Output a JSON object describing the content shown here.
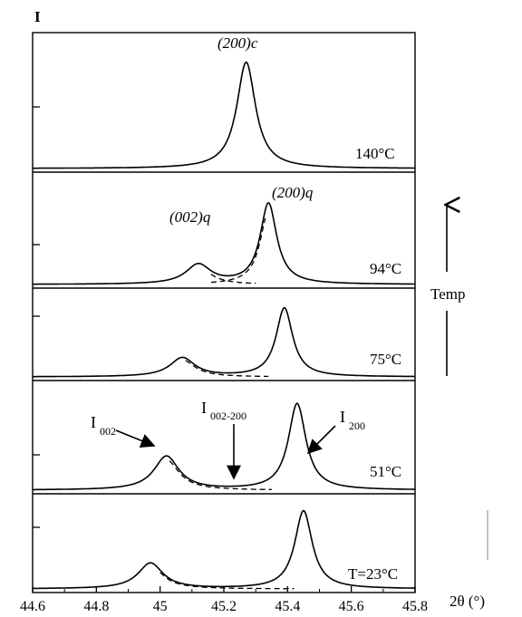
{
  "chart_data": {
    "type": "line",
    "title": "",
    "ylabel": "I",
    "xlabel": "2θ (°)",
    "xlim": [
      44.6,
      45.8
    ],
    "x_ticks": [
      "44.6",
      "44.8",
      "45",
      "45.2",
      "45.4",
      "45.6",
      "45.8"
    ],
    "x_tick_values": [
      44.6,
      44.8,
      45.0,
      45.2,
      45.4,
      45.6,
      45.8
    ],
    "grid": false,
    "panels": [
      {
        "label": "140°C",
        "peaks": [
          {
            "center": 45.27,
            "height": 0.82,
            "width": 0.045
          }
        ],
        "fit_components": []
      },
      {
        "label": "94°C",
        "peaks": [
          {
            "center": 45.12,
            "height": 0.18,
            "width": 0.06
          },
          {
            "center": 45.34,
            "height": 0.75,
            "width": 0.04
          }
        ],
        "fit_components": [
          {
            "center": 45.12,
            "height": 0.18,
            "width": 0.06,
            "range": [
              45.16,
              45.3
            ]
          },
          {
            "center": 45.34,
            "height": 0.75,
            "width": 0.04,
            "range": [
              45.16,
              45.33
            ]
          }
        ],
        "peak_labels": [
          "(002)q",
          "(200)q"
        ]
      },
      {
        "label": "75°C",
        "peaks": [
          {
            "center": 45.07,
            "height": 0.22,
            "width": 0.06
          },
          {
            "center": 45.39,
            "height": 0.8,
            "width": 0.04
          }
        ],
        "fit_components": [
          {
            "center": 45.07,
            "height": 0.22,
            "width": 0.06,
            "range": [
              45.08,
              45.34
            ]
          }
        ]
      },
      {
        "label": "51°C",
        "peaks": [
          {
            "center": 45.02,
            "height": 0.32,
            "width": 0.06
          },
          {
            "center": 45.43,
            "height": 0.82,
            "width": 0.042
          }
        ],
        "fit_components": [
          {
            "center": 45.02,
            "height": 0.32,
            "width": 0.06,
            "range": [
              45.03,
              45.35
            ]
          }
        ],
        "annotations": [
          "I 002",
          "I 002-200",
          "I 200"
        ]
      },
      {
        "label": "T=23°C",
        "peaks": [
          {
            "center": 44.97,
            "height": 0.28,
            "width": 0.06
          },
          {
            "center": 45.45,
            "height": 0.85,
            "width": 0.042
          }
        ],
        "fit_components": [
          {
            "center": 44.97,
            "height": 0.28,
            "width": 0.06,
            "range": [
              45.0,
              45.42
            ]
          }
        ]
      }
    ],
    "annotations": {
      "peak_140": "(200)c",
      "peak_002q": "(002)q",
      "peak_200q": "(200)q",
      "i002_main": "I",
      "i002_sub": "002",
      "i002200_main": "I",
      "i002200_sub": "002-200",
      "i200_main": "I",
      "i200_sub": "200",
      "temp_label": "Temp"
    }
  }
}
